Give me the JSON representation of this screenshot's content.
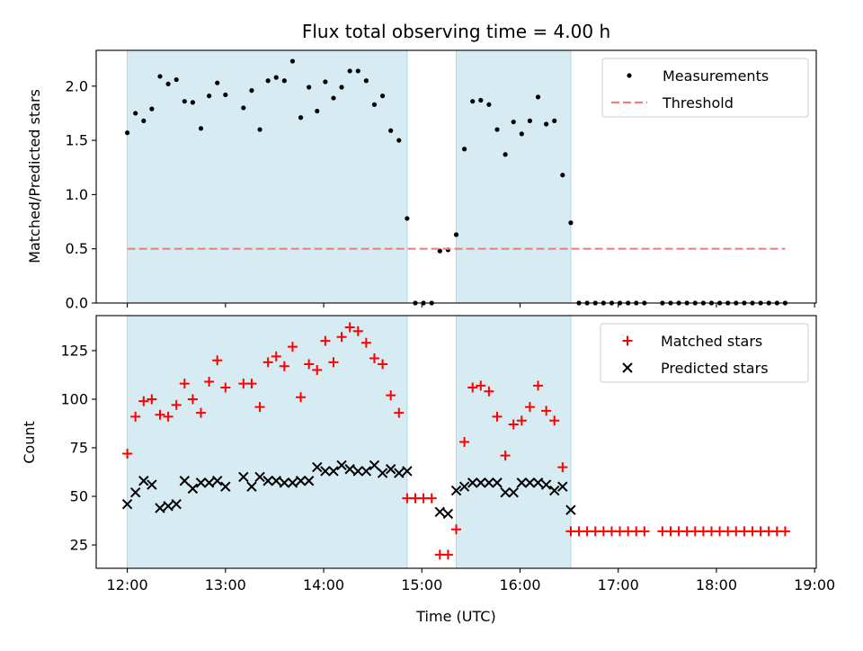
{
  "chart_data": [
    {
      "type": "scatter",
      "title": "Flux total observing time = 4.00 h",
      "ylabel": "Matched/Predicted stars",
      "xlabel": "",
      "xlim": [
        "11:41",
        "19:01"
      ],
      "ylim": [
        0,
        2.33
      ],
      "x_ticks": [
        "12:00",
        "13:00",
        "14:00",
        "15:00",
        "16:00",
        "17:00",
        "18:00",
        "19:00"
      ],
      "y_ticks": [
        "0.0",
        "0.5",
        "1.0",
        "1.5",
        "2.0"
      ],
      "y_tick_values": [
        0,
        0.5,
        1.0,
        1.5,
        2.0
      ],
      "grid": false,
      "legend": "top-right",
      "colors": {
        "measurements": "#000000",
        "threshold": "#f08080",
        "shade": "#add8e6"
      },
      "shaded_intervals": [
        [
          "12:00",
          "14:51"
        ],
        [
          "15:21",
          "16:31"
        ]
      ],
      "series": [
        {
          "name": "Measurements",
          "style": "dots",
          "points": [
            [
              "12:00",
              1.57
            ],
            [
              "12:05",
              1.75
            ],
            [
              "12:10",
              1.68
            ],
            [
              "12:15",
              1.79
            ],
            [
              "12:20",
              2.09
            ],
            [
              "12:25",
              2.02
            ],
            [
              "12:30",
              2.06
            ],
            [
              "12:35",
              1.86
            ],
            [
              "12:40",
              1.85
            ],
            [
              "12:45",
              1.61
            ],
            [
              "12:50",
              1.91
            ],
            [
              "12:55",
              2.03
            ],
            [
              "13:00",
              1.92
            ],
            [
              "13:11",
              1.8
            ],
            [
              "13:16",
              1.96
            ],
            [
              "13:21",
              1.6
            ],
            [
              "13:26",
              2.05
            ],
            [
              "13:31",
              2.08
            ],
            [
              "13:36",
              2.05
            ],
            [
              "13:41",
              2.23
            ],
            [
              "13:46",
              1.71
            ],
            [
              "13:51",
              1.99
            ],
            [
              "13:56",
              1.77
            ],
            [
              "14:01",
              2.04
            ],
            [
              "14:06",
              1.89
            ],
            [
              "14:11",
              1.99
            ],
            [
              "14:16",
              2.14
            ],
            [
              "14:21",
              2.14
            ],
            [
              "14:26",
              2.05
            ],
            [
              "14:31",
              1.83
            ],
            [
              "14:36",
              1.91
            ],
            [
              "14:41",
              1.59
            ],
            [
              "14:46",
              1.5
            ],
            [
              "14:51",
              0.78
            ],
            [
              "14:56",
              0.0
            ],
            [
              "15:01",
              0.0
            ],
            [
              "15:06",
              0.0
            ],
            [
              "15:11",
              0.48
            ],
            [
              "15:16",
              0.49
            ],
            [
              "15:21",
              0.63
            ],
            [
              "15:26",
              1.42
            ],
            [
              "15:31",
              1.86
            ],
            [
              "15:36",
              1.87
            ],
            [
              "15:41",
              1.83
            ],
            [
              "15:46",
              1.6
            ],
            [
              "15:51",
              1.37
            ],
            [
              "15:56",
              1.67
            ],
            [
              "16:01",
              1.56
            ],
            [
              "16:06",
              1.68
            ],
            [
              "16:11",
              1.9
            ],
            [
              "16:16",
              1.65
            ],
            [
              "16:21",
              1.68
            ],
            [
              "16:26",
              1.18
            ],
            [
              "16:31",
              0.74
            ],
            [
              "16:36",
              0.0
            ],
            [
              "16:41",
              0.0
            ],
            [
              "16:46",
              0.0
            ],
            [
              "16:51",
              0.0
            ],
            [
              "16:56",
              0.0
            ],
            [
              "17:01",
              0.0
            ],
            [
              "17:06",
              0.0
            ],
            [
              "17:11",
              0.0
            ],
            [
              "17:16",
              0.0
            ],
            [
              "17:27",
              0.0
            ],
            [
              "17:32",
              0.0
            ],
            [
              "17:37",
              0.0
            ],
            [
              "17:42",
              0.0
            ],
            [
              "17:47",
              0.0
            ],
            [
              "17:52",
              0.0
            ],
            [
              "17:57",
              0.0
            ],
            [
              "18:02",
              0.0
            ],
            [
              "18:07",
              0.0
            ],
            [
              "18:12",
              0.0
            ],
            [
              "18:17",
              0.0
            ],
            [
              "18:22",
              0.0
            ],
            [
              "18:27",
              0.0
            ],
            [
              "18:32",
              0.0
            ],
            [
              "18:37",
              0.0
            ],
            [
              "18:42",
              0.0
            ]
          ]
        },
        {
          "name": "Threshold",
          "style": "dashed-line",
          "points": [
            [
              "12:00",
              0.5
            ],
            [
              "18:42",
              0.5
            ]
          ]
        }
      ]
    },
    {
      "type": "scatter",
      "title": "",
      "ylabel": "Count",
      "xlabel": "Time (UTC)",
      "xlim": [
        "11:41",
        "19:01"
      ],
      "ylim": [
        13,
        143
      ],
      "x_ticks": [
        "12:00",
        "13:00",
        "14:00",
        "15:00",
        "16:00",
        "17:00",
        "18:00",
        "19:00"
      ],
      "y_ticks": [
        "25",
        "50",
        "75",
        "100",
        "125"
      ],
      "y_tick_values": [
        25,
        50,
        75,
        100,
        125
      ],
      "grid": false,
      "legend": "top-right",
      "colors": {
        "matched": "#ff0000",
        "predicted": "#000000",
        "shade": "#add8e6"
      },
      "shaded_intervals": [
        [
          "12:00",
          "14:51"
        ],
        [
          "15:21",
          "16:31"
        ]
      ],
      "series": [
        {
          "name": "Matched stars",
          "style": "plus",
          "points": [
            [
              "12:00",
              72
            ],
            [
              "12:05",
              91
            ],
            [
              "12:10",
              99
            ],
            [
              "12:15",
              100
            ],
            [
              "12:20",
              92
            ],
            [
              "12:25",
              91
            ],
            [
              "12:30",
              97
            ],
            [
              "12:35",
              108
            ],
            [
              "12:40",
              100
            ],
            [
              "12:45",
              93
            ],
            [
              "12:50",
              109
            ],
            [
              "12:55",
              120
            ],
            [
              "13:00",
              106
            ],
            [
              "13:11",
              108
            ],
            [
              "13:16",
              108
            ],
            [
              "13:21",
              96
            ],
            [
              "13:26",
              119
            ],
            [
              "13:31",
              122
            ],
            [
              "13:36",
              117
            ],
            [
              "13:41",
              127
            ],
            [
              "13:46",
              101
            ],
            [
              "13:51",
              118
            ],
            [
              "13:56",
              115
            ],
            [
              "14:01",
              130
            ],
            [
              "14:06",
              119
            ],
            [
              "14:11",
              132
            ],
            [
              "14:16",
              137
            ],
            [
              "14:21",
              135
            ],
            [
              "14:26",
              129
            ],
            [
              "14:31",
              121
            ],
            [
              "14:36",
              118
            ],
            [
              "14:41",
              102
            ],
            [
              "14:46",
              93
            ],
            [
              "14:51",
              49
            ],
            [
              "14:56",
              49
            ],
            [
              "15:01",
              49
            ],
            [
              "15:06",
              49
            ],
            [
              "15:11",
              20
            ],
            [
              "15:16",
              20
            ],
            [
              "15:21",
              33
            ],
            [
              "15:26",
              78
            ],
            [
              "15:31",
              106
            ],
            [
              "15:36",
              107
            ],
            [
              "15:41",
              104
            ],
            [
              "15:46",
              91
            ],
            [
              "15:51",
              71
            ],
            [
              "15:56",
              87
            ],
            [
              "16:01",
              89
            ],
            [
              "16:06",
              96
            ],
            [
              "16:11",
              107
            ],
            [
              "16:16",
              94
            ],
            [
              "16:21",
              89
            ],
            [
              "16:26",
              65
            ],
            [
              "16:31",
              32
            ],
            [
              "16:36",
              32
            ],
            [
              "16:41",
              32
            ],
            [
              "16:46",
              32
            ],
            [
              "16:51",
              32
            ],
            [
              "16:56",
              32
            ],
            [
              "17:01",
              32
            ],
            [
              "17:06",
              32
            ],
            [
              "17:11",
              32
            ],
            [
              "17:16",
              32
            ],
            [
              "17:27",
              32
            ],
            [
              "17:32",
              32
            ],
            [
              "17:37",
              32
            ],
            [
              "17:42",
              32
            ],
            [
              "17:47",
              32
            ],
            [
              "17:52",
              32
            ],
            [
              "17:57",
              32
            ],
            [
              "18:02",
              32
            ],
            [
              "18:07",
              32
            ],
            [
              "18:12",
              32
            ],
            [
              "18:17",
              32
            ],
            [
              "18:22",
              32
            ],
            [
              "18:27",
              32
            ],
            [
              "18:32",
              32
            ],
            [
              "18:37",
              32
            ],
            [
              "18:42",
              32
            ]
          ]
        },
        {
          "name": "Predicted stars",
          "style": "x",
          "points": [
            [
              "12:00",
              46
            ],
            [
              "12:05",
              52
            ],
            [
              "12:10",
              58
            ],
            [
              "12:15",
              56
            ],
            [
              "12:20",
              44
            ],
            [
              "12:25",
              45
            ],
            [
              "12:30",
              46
            ],
            [
              "12:35",
              58
            ],
            [
              "12:40",
              54
            ],
            [
              "12:45",
              57
            ],
            [
              "12:50",
              57
            ],
            [
              "12:55",
              58
            ],
            [
              "13:00",
              55
            ],
            [
              "13:11",
              60
            ],
            [
              "13:16",
              55
            ],
            [
              "13:21",
              60
            ],
            [
              "13:26",
              58
            ],
            [
              "13:31",
              58
            ],
            [
              "13:36",
              57
            ],
            [
              "13:41",
              57
            ],
            [
              "13:46",
              58
            ],
            [
              "13:51",
              58
            ],
            [
              "13:56",
              65
            ],
            [
              "14:01",
              63
            ],
            [
              "14:06",
              63
            ],
            [
              "14:11",
              66
            ],
            [
              "14:16",
              64
            ],
            [
              "14:21",
              63
            ],
            [
              "14:26",
              63
            ],
            [
              "14:31",
              66
            ],
            [
              "14:36",
              62
            ],
            [
              "14:41",
              64
            ],
            [
              "14:46",
              62
            ],
            [
              "14:51",
              63
            ],
            [
              "15:11",
              42
            ],
            [
              "15:16",
              41
            ],
            [
              "15:21",
              53
            ],
            [
              "15:26",
              55
            ],
            [
              "15:31",
              57
            ],
            [
              "15:36",
              57
            ],
            [
              "15:41",
              57
            ],
            [
              "15:46",
              57
            ],
            [
              "15:51",
              52
            ],
            [
              "15:56",
              52
            ],
            [
              "16:01",
              57
            ],
            [
              "16:06",
              57
            ],
            [
              "16:11",
              57
            ],
            [
              "16:16",
              56
            ],
            [
              "16:21",
              53
            ],
            [
              "16:26",
              55
            ],
            [
              "16:31",
              43
            ]
          ]
        }
      ]
    }
  ]
}
